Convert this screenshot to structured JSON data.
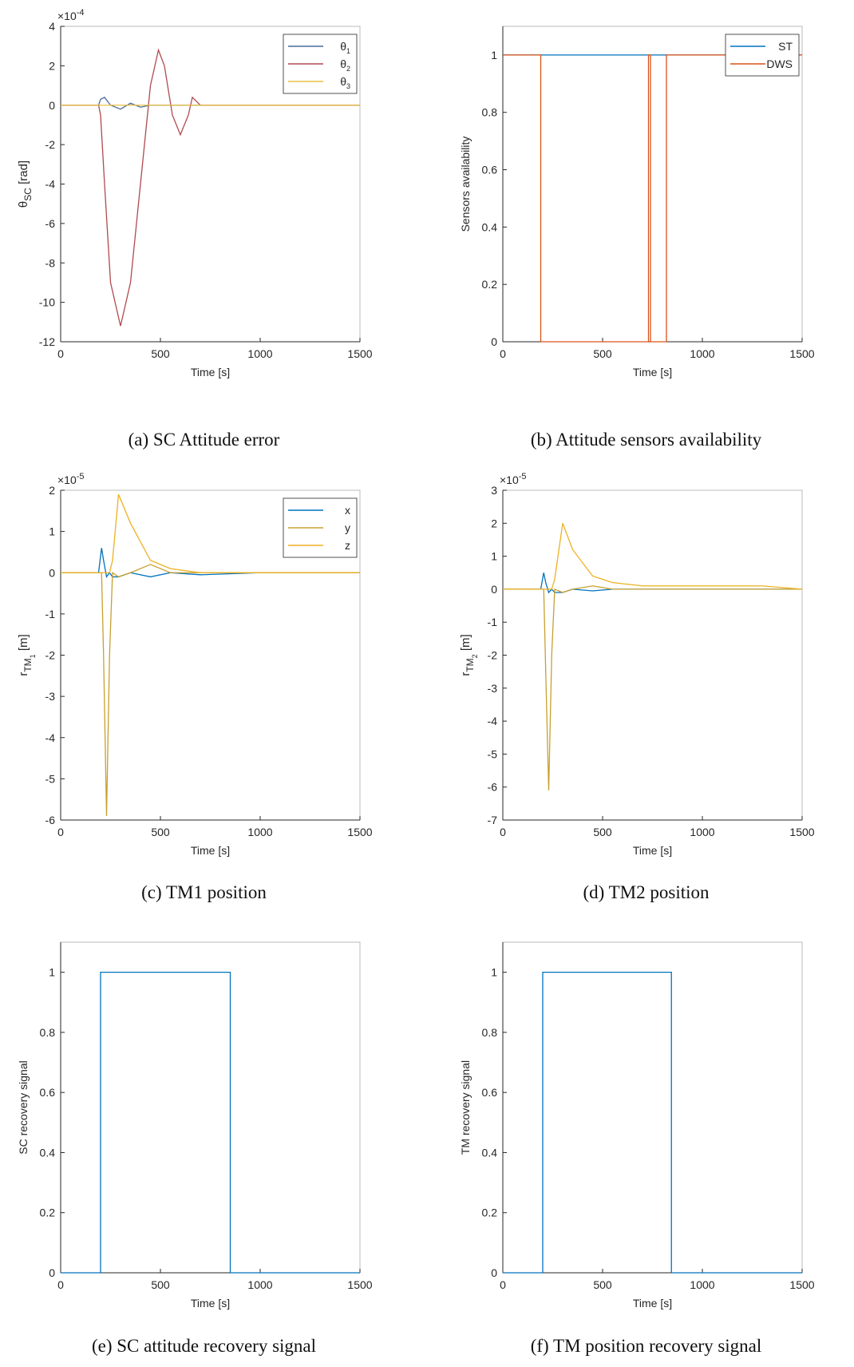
{
  "chart_data": [
    {
      "type": "line",
      "caption": "(a) SC Attitude error",
      "xlabel": "Time [s]",
      "ylabel": [
        {
          "text": "θ"
        },
        {
          "text": "SC",
          "sub": 1
        },
        {
          "text": " [rad]"
        }
      ],
      "y_multiplier": "×10",
      "y_exponent": "-4",
      "xlim": [
        0,
        1500
      ],
      "xticks": [
        0,
        500,
        1000,
        1500
      ],
      "ylim": [
        -12,
        4
      ],
      "yticks": [
        -12,
        -10,
        -8,
        -6,
        -4,
        -2,
        0,
        2,
        4
      ],
      "legend": "top-right",
      "x": [
        0,
        100,
        190,
        200,
        220,
        250,
        300,
        350,
        400,
        450,
        490,
        520,
        560,
        600,
        640,
        660,
        700,
        750,
        800,
        1000,
        1500
      ],
      "series": [
        {
          "name": "θ",
          "name_sub": "1",
          "color": "#4a6a9a",
          "values": [
            0,
            0,
            0,
            0.3,
            0.4,
            0,
            -0.2,
            0.1,
            -0.1,
            0,
            0,
            0,
            0,
            0,
            0,
            0,
            0,
            0,
            0,
            0,
            0
          ]
        },
        {
          "name": "θ",
          "name_sub": "2",
          "color": "#b04a50",
          "values": [
            0,
            0,
            0,
            -0.5,
            -4,
            -9,
            -11.2,
            -9,
            -4,
            1,
            2.8,
            2,
            -0.5,
            -1.5,
            -0.5,
            0.4,
            0,
            0,
            0,
            0,
            0
          ]
        },
        {
          "name": "θ",
          "name_sub": "3",
          "color": "#e8c040",
          "values": [
            0,
            0,
            0,
            0,
            0,
            0,
            0,
            0,
            0,
            0,
            0,
            0,
            0,
            0,
            0,
            0,
            0,
            0,
            0,
            0,
            0
          ]
        }
      ]
    },
    {
      "type": "line",
      "caption": "(b) Attitude sensors availability",
      "xlabel": "Time [s]",
      "ylabel": "Sensors availability",
      "xlim": [
        0,
        1500
      ],
      "xticks": [
        0,
        500,
        1000,
        1500
      ],
      "ylim": [
        0,
        1.1
      ],
      "yticks": [
        0,
        0.2,
        0.4,
        0.6,
        0.8,
        1
      ],
      "legend": "top-right",
      "x": [
        0,
        190,
        190,
        730,
        730,
        740,
        740,
        820,
        820,
        1500
      ],
      "series": [
        {
          "name": "ST",
          "color": "#0072bd",
          "values": [
            1,
            1,
            1,
            1,
            1,
            1,
            1,
            1,
            1,
            1
          ]
        },
        {
          "name": "DWS",
          "color": "#d95319",
          "values": [
            1,
            1,
            0,
            0,
            1,
            1,
            0,
            0,
            1,
            1
          ]
        }
      ]
    },
    {
      "type": "line",
      "caption": "(c) TM1 position",
      "xlabel": "Time [s]",
      "ylabel": [
        {
          "text": "r"
        },
        {
          "text": "TM",
          "sub": 1
        },
        {
          "text": "1",
          "sub": 2
        },
        {
          "text": " [m]"
        }
      ],
      "y_multiplier": "×10",
      "y_exponent": "-5",
      "xlim": [
        0,
        1500
      ],
      "xticks": [
        0,
        500,
        1000,
        1500
      ],
      "ylim": [
        -6,
        2
      ],
      "yticks": [
        -6,
        -5,
        -4,
        -3,
        -2,
        -1,
        0,
        1,
        2
      ],
      "legend": "top-right",
      "x": [
        0,
        190,
        205,
        215,
        230,
        245,
        260,
        290,
        350,
        450,
        550,
        700,
        1000,
        1500
      ],
      "series": [
        {
          "name": "x",
          "color": "#0072bd",
          "values": [
            0,
            0,
            0.6,
            0.3,
            -0.1,
            0,
            -0.1,
            -0.1,
            0,
            -0.1,
            0,
            -0.05,
            0,
            0
          ]
        },
        {
          "name": "y",
          "color": "#c8a030",
          "values": [
            0,
            0,
            0,
            -2,
            -5.9,
            -2,
            0,
            -0.1,
            0,
            0.2,
            0,
            0,
            0,
            0
          ]
        },
        {
          "name": "z",
          "color": "#edb120",
          "values": [
            0,
            0,
            0,
            0,
            0,
            0,
            0.3,
            1.9,
            1.2,
            0.3,
            0.1,
            0,
            0,
            0
          ]
        }
      ]
    },
    {
      "type": "line",
      "caption": "(d) TM2 position",
      "xlabel": "Time [s]",
      "ylabel": [
        {
          "text": "r"
        },
        {
          "text": "TM",
          "sub": 1
        },
        {
          "text": "2",
          "sub": 2
        },
        {
          "text": " [m]"
        }
      ],
      "y_multiplier": "×10",
      "y_exponent": "-5",
      "xlim": [
        0,
        1500
      ],
      "xticks": [
        0,
        500,
        1000,
        1500
      ],
      "ylim": [
        -7,
        3
      ],
      "yticks": [
        -7,
        -6,
        -5,
        -4,
        -3,
        -2,
        -1,
        0,
        1,
        2,
        3
      ],
      "x": [
        0,
        190,
        205,
        215,
        230,
        245,
        260,
        300,
        350,
        450,
        550,
        700,
        1000,
        1300,
        1500
      ],
      "series": [
        {
          "color": "#0072bd",
          "values": [
            0,
            0,
            0.5,
            0.2,
            -0.1,
            0,
            -0.1,
            -0.1,
            0,
            -0.05,
            0,
            0,
            0,
            0,
            0
          ]
        },
        {
          "color": "#c8a030",
          "values": [
            0,
            0,
            0,
            -2.5,
            -6.1,
            -2,
            0,
            -0.1,
            0,
            0.1,
            0,
            0,
            0,
            0,
            0
          ]
        },
        {
          "color": "#edb120",
          "values": [
            0,
            0,
            0,
            0,
            0,
            0,
            0.3,
            2,
            1.2,
            0.4,
            0.2,
            0.1,
            0.1,
            0.1,
            0
          ]
        }
      ]
    },
    {
      "type": "line",
      "caption": "(e) SC attitude recovery signal",
      "xlabel": "Time [s]",
      "ylabel": "SC recovery signal",
      "xlim": [
        0,
        1500
      ],
      "xticks": [
        0,
        500,
        1000,
        1500
      ],
      "ylim": [
        0,
        1.1
      ],
      "yticks": [
        0,
        0.2,
        0.4,
        0.6,
        0.8,
        1
      ],
      "x": [
        0,
        200,
        200,
        850,
        850,
        1500
      ],
      "series": [
        {
          "color": "#0072bd",
          "values": [
            0,
            0,
            1,
            1,
            0,
            0
          ]
        }
      ]
    },
    {
      "type": "line",
      "caption": "(f) TM position recovery signal",
      "xlabel": "Time [s]",
      "ylabel": "TM recovery signal",
      "xlim": [
        0,
        1500
      ],
      "xticks": [
        0,
        500,
        1000,
        1500
      ],
      "ylim": [
        0,
        1.1
      ],
      "yticks": [
        0,
        0.2,
        0.4,
        0.6,
        0.8,
        1
      ],
      "x": [
        0,
        200,
        200,
        845,
        845,
        1500
      ],
      "series": [
        {
          "color": "#0072bd",
          "values": [
            0,
            0,
            1,
            1,
            0,
            0
          ]
        }
      ]
    }
  ]
}
